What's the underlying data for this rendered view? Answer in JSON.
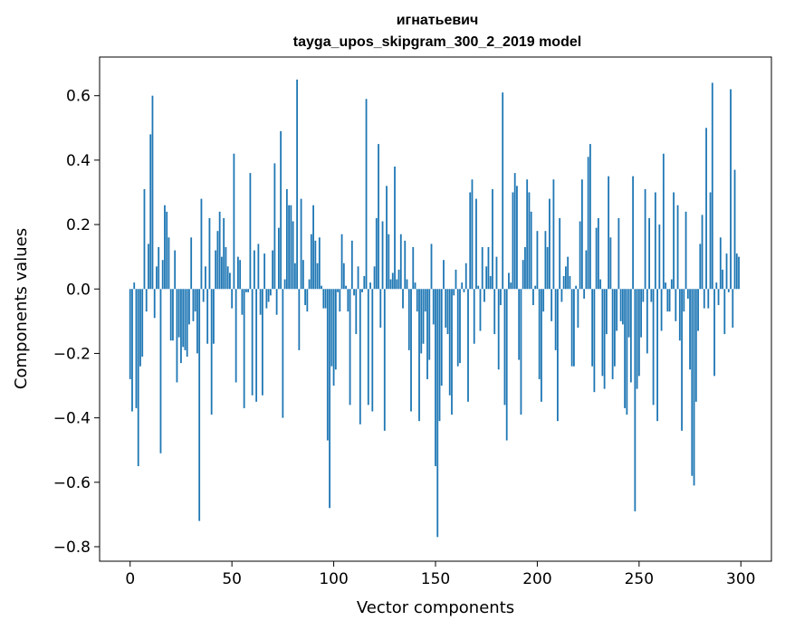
{
  "chart_data": {
    "type": "bar",
    "title_line1": "игнатьевич",
    "title_line2": "tayga_upos_skipgram_300_2_2019 model",
    "xlabel": "Vector components",
    "ylabel": "Components values",
    "xlim": [
      -15,
      315
    ],
    "ylim": [
      -0.845,
      0.72
    ],
    "x_ticks": [
      0,
      50,
      100,
      150,
      200,
      250,
      300
    ],
    "y_ticks": [
      -0.8,
      -0.6,
      -0.4,
      -0.2,
      0.0,
      0.2,
      0.4,
      0.6
    ],
    "y_tick_labels": [
      "−0.8",
      "−0.6",
      "−0.4",
      "−0.2",
      "0.0",
      "0.2",
      "0.4",
      "0.6"
    ],
    "bar_color": "#1f77b4",
    "grid": false,
    "values": [
      -0.28,
      -0.38,
      0.02,
      -0.37,
      -0.55,
      -0.24,
      -0.21,
      0.31,
      -0.07,
      0.14,
      0.48,
      0.6,
      -0.09,
      0.07,
      0.13,
      -0.51,
      0.09,
      0.26,
      0.24,
      0.16,
      -0.16,
      -0.16,
      0.12,
      -0.29,
      -0.15,
      -0.23,
      -0.18,
      -0.19,
      -0.21,
      -0.11,
      0.16,
      -0.1,
      -0.07,
      -0.2,
      -0.72,
      0.28,
      -0.04,
      0.07,
      -0.17,
      0.22,
      -0.39,
      -0.17,
      0.12,
      0.18,
      0.24,
      0.1,
      0.22,
      0.13,
      0.07,
      0.05,
      -0.06,
      0.42,
      -0.29,
      0.1,
      0.09,
      -0.08,
      -0.37,
      -0.01,
      -0.01,
      0.36,
      -0.33,
      0.12,
      -0.35,
      0.14,
      -0.08,
      -0.33,
      0.11,
      -0.06,
      -0.04,
      -0.02,
      0.12,
      0.39,
      -0.08,
      0.19,
      0.49,
      -0.4,
      0.03,
      0.31,
      0.26,
      0.26,
      0.21,
      0.08,
      0.65,
      -0.19,
      0.28,
      0.09,
      -0.05,
      -0.07,
      0.03,
      0.17,
      0.26,
      0.15,
      0.08,
      0.16,
      0.01,
      -0.06,
      -0.06,
      -0.47,
      -0.68,
      -0.24,
      -0.3,
      -0.25,
      -0.01,
      -0.07,
      0.17,
      0.08,
      0.01,
      -0.07,
      -0.36,
      0.15,
      -0.02,
      -0.14,
      0.07,
      -0.42,
      -0.01,
      0.04,
      0.59,
      -0.36,
      0.02,
      -0.38,
      0.07,
      0.22,
      0.45,
      -0.12,
      0.21,
      -0.44,
      0.32,
      0.17,
      0.03,
      0.05,
      0.38,
      0.03,
      0.06,
      0.17,
      -0.06,
      0.15,
      0.03,
      -0.19,
      -0.38,
      0.13,
      0.02,
      -0.07,
      -0.41,
      -0.2,
      -0.17,
      -0.07,
      -0.28,
      -0.22,
      0.14,
      -0.11,
      -0.55,
      -0.77,
      -0.41,
      -0.3,
      0.09,
      -0.12,
      -0.14,
      -0.33,
      -0.39,
      -0.02,
      0.06,
      -0.24,
      -0.23,
      0.02,
      -0.01,
      0.08,
      -0.35,
      0.3,
      0.34,
      -0.17,
      0.28,
      0.01,
      -0.13,
      0.13,
      -0.04,
      0.07,
      0.13,
      0.04,
      0.31,
      -0.14,
      0.1,
      -0.25,
      -0.05,
      0.61,
      -0.36,
      -0.47,
      0.05,
      0.02,
      0.3,
      0.36,
      0.32,
      -0.22,
      -0.39,
      0.09,
      0.13,
      0.34,
      0.3,
      0.24,
      -0.05,
      0.01,
      0.18,
      -0.28,
      -0.35,
      -0.07,
      0.18,
      0.13,
      0.28,
      -0.1,
      0.34,
      -0.19,
      -0.41,
      0.22,
      -0.04,
      0.04,
      0.07,
      0.1,
      0.04,
      -0.24,
      -0.24,
      0.01,
      -0.12,
      0.21,
      0.34,
      -0.03,
      0.12,
      0.41,
      0.45,
      -0.24,
      -0.32,
      0.19,
      0.22,
      0.03,
      -0.27,
      -0.31,
      -0.14,
      0.35,
      0.16,
      -0.28,
      -0.24,
      -0.13,
      0.22,
      -0.1,
      -0.11,
      -0.37,
      -0.39,
      -0.15,
      -0.29,
      0.35,
      -0.69,
      -0.31,
      -0.27,
      -0.15,
      -0.04,
      0.31,
      -0.2,
      0.22,
      -0.04,
      -0.36,
      0.3,
      -0.41,
      0.2,
      -0.13,
      0.42,
      0.02,
      -0.07,
      -0.07,
      0.03,
      0.3,
      -0.1,
      0.26,
      -0.16,
      -0.44,
      -0.07,
      0.24,
      -0.03,
      -0.25,
      -0.58,
      -0.61,
      -0.35,
      -0.13,
      0.14,
      0.23,
      -0.06,
      0.5,
      -0.06,
      0.3,
      0.64,
      -0.27,
      0.02,
      -0.05,
      0.16,
      0.06,
      -0.14,
      0.11,
      -0.01,
      0.62,
      -0.12,
      0.37,
      0.11,
      0.1
    ]
  }
}
